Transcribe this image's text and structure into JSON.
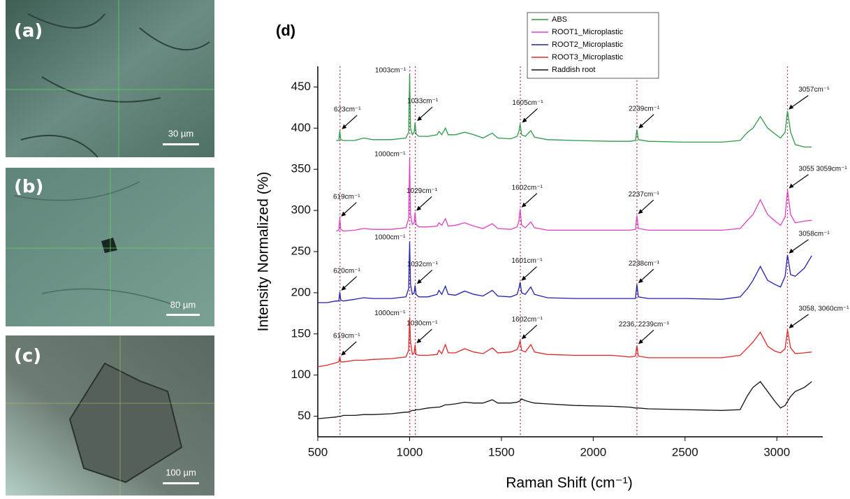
{
  "panels": [
    {
      "label": "(a)",
      "scale": "30 µm"
    },
    {
      "label": "(b)",
      "scale": "80 µm"
    },
    {
      "label": "(c)",
      "scale": "100 µm"
    }
  ],
  "chart_data": {
    "type": "line",
    "title": "(d)",
    "xlabel": "Raman Shift (cm⁻¹)",
    "ylabel": "Intensity Normalized (%)",
    "xlim": [
      500,
      3250
    ],
    "xticks": [
      500,
      1000,
      1500,
      2000,
      2500,
      3000
    ],
    "ylim": [
      25,
      475
    ],
    "yticks": [
      50,
      100,
      150,
      200,
      250,
      300,
      350,
      400,
      450
    ],
    "legend": "top",
    "x": [
      500,
      550,
      600,
      615,
      620,
      625,
      640,
      700,
      750,
      800,
      900,
      980,
      995,
      1000,
      1005,
      1015,
      1025,
      1030,
      1035,
      1050,
      1100,
      1150,
      1160,
      1175,
      1195,
      1210,
      1250,
      1300,
      1350,
      1400,
      1450,
      1480,
      1550,
      1585,
      1595,
      1602,
      1610,
      1630,
      1660,
      1680,
      1750,
      1900,
      2100,
      2200,
      2230,
      2238,
      2246,
      2300,
      2500,
      2700,
      2800,
      2840,
      2870,
      2910,
      2950,
      2990,
      3020,
      3045,
      3058,
      3075,
      3100,
      3150,
      3190
    ],
    "series": [
      {
        "name": "ABS",
        "color": "#2e9a4a",
        "values": [
          null,
          null,
          385,
          385,
          397,
          386,
          385,
          385,
          388,
          386,
          386,
          388,
          395,
          465,
          400,
          392,
          395,
          407,
          393,
          390,
          390,
          392,
          396,
          392,
          400,
          392,
          392,
          395,
          392,
          388,
          394,
          388,
          387,
          390,
          396,
          405,
          392,
          390,
          397,
          389,
          386,
          385,
          384,
          384,
          385,
          398,
          386,
          384,
          383,
          383,
          385,
          395,
          400,
          414,
          400,
          393,
          388,
          395,
          421,
          395,
          380,
          377,
          377
        ]
      },
      {
        "name": "ROOT1_Microplastic",
        "color": "#e040c8",
        "values": [
          null,
          null,
          275,
          276,
          291,
          277,
          275,
          276,
          278,
          277,
          277,
          279,
          290,
          363,
          295,
          283,
          285,
          298,
          283,
          280,
          280,
          281,
          285,
          282,
          290,
          281,
          282,
          285,
          281,
          278,
          284,
          278,
          277,
          280,
          287,
          302,
          282,
          279,
          286,
          279,
          276,
          276,
          276,
          276,
          277,
          294,
          278,
          276,
          276,
          276,
          278,
          288,
          295,
          313,
          295,
          287,
          282,
          292,
          325,
          295,
          285,
          287,
          288
        ]
      },
      {
        "name": "ROOT2_Microplastic",
        "color": "#2020b0",
        "values": [
          188,
          188,
          190,
          190,
          201,
          191,
          190,
          192,
          194,
          193,
          193,
          195,
          205,
          262,
          210,
          198,
          200,
          209,
          198,
          195,
          195,
          198,
          203,
          198,
          208,
          198,
          197,
          202,
          198,
          196,
          203,
          196,
          195,
          198,
          205,
          213,
          200,
          198,
          207,
          198,
          194,
          193,
          193,
          193,
          193,
          210,
          195,
          193,
          193,
          192,
          195,
          205,
          215,
          232,
          215,
          210,
          207,
          220,
          246,
          222,
          220,
          230,
          245
        ]
      },
      {
        "name": "ROOT3_Microplastic",
        "color": "#e02828",
        "values": [
          110,
          112,
          115,
          116,
          122,
          116,
          116,
          118,
          118,
          119,
          120,
          122,
          130,
          170,
          140,
          125,
          127,
          137,
          125,
          124,
          124,
          125,
          130,
          126,
          137,
          127,
          127,
          132,
          128,
          126,
          133,
          127,
          128,
          131,
          136,
          142,
          130,
          128,
          137,
          128,
          125,
          124,
          124,
          122,
          123,
          136,
          123,
          121,
          121,
          121,
          124,
          133,
          140,
          152,
          135,
          129,
          127,
          132,
          155,
          133,
          126,
          127,
          128
        ]
      },
      {
        "name": "Raddish root",
        "color": "#111111",
        "values": [
          47,
          48,
          49,
          50,
          50,
          50,
          51,
          51,
          52,
          52,
          53,
          55,
          55,
          56,
          56,
          57,
          57,
          57,
          58,
          58,
          60,
          61,
          61,
          62,
          64,
          64,
          65,
          67,
          66,
          66,
          70,
          66,
          66,
          67,
          68,
          69,
          71,
          69,
          67,
          66,
          65,
          63,
          62,
          61,
          60,
          60,
          60,
          59,
          58,
          57,
          58,
          75,
          85,
          92,
          80,
          68,
          60,
          63,
          68,
          74,
          80,
          85,
          92
        ]
      }
    ],
    "vlines": [
      621,
      1001,
      1031,
      1603,
      2238,
      3058
    ],
    "vline_color": "#c03040",
    "annotations": [
      {
        "text": "623cm⁻¹",
        "x": 623,
        "y": 397
      },
      {
        "text": "1003cm⁻¹",
        "x": 1003,
        "y": 465
      },
      {
        "text": "1033cm⁻¹",
        "x": 1033,
        "y": 407
      },
      {
        "text": "1605cm⁻¹",
        "x": 1605,
        "y": 405
      },
      {
        "text": "2239cm⁻¹",
        "x": 2239,
        "y": 398
      },
      {
        "text": "3057cm⁻¹",
        "x": 3057,
        "y": 421
      },
      {
        "text": "619cm⁻¹",
        "x": 619,
        "y": 291
      },
      {
        "text": "1000cm⁻¹",
        "x": 1000,
        "y": 363
      },
      {
        "text": "1029cm⁻¹",
        "x": 1029,
        "y": 298
      },
      {
        "text": "1602cm⁻¹",
        "x": 1602,
        "y": 302
      },
      {
        "text": "2237cm⁻¹",
        "x": 2237,
        "y": 294
      },
      {
        "text": "3055 3059cm⁻¹",
        "x": 3058,
        "y": 325
      },
      {
        "text": "620cm⁻¹",
        "x": 620,
        "y": 201
      },
      {
        "text": "1000cm⁻¹",
        "x": 1000,
        "y": 262
      },
      {
        "text": "1032cm⁻¹",
        "x": 1032,
        "y": 209
      },
      {
        "text": "1601cm⁻¹",
        "x": 1601,
        "y": 213
      },
      {
        "text": "2238cm⁻¹",
        "x": 2238,
        "y": 210
      },
      {
        "text": "3058cm⁻¹",
        "x": 3058,
        "y": 246
      },
      {
        "text": "619cm⁻¹",
        "x": 619,
        "y": 122
      },
      {
        "text": "1000cm⁻¹",
        "x": 1000,
        "y": 170
      },
      {
        "text": "1030cm⁻¹",
        "x": 1030,
        "y": 137
      },
      {
        "text": "1602cm⁻¹",
        "x": 1602,
        "y": 142
      },
      {
        "text": "2236, 2239cm⁻¹",
        "x": 2238,
        "y": 136
      },
      {
        "text": "3058, 3060cm⁻¹",
        "x": 3058,
        "y": 155
      }
    ]
  }
}
